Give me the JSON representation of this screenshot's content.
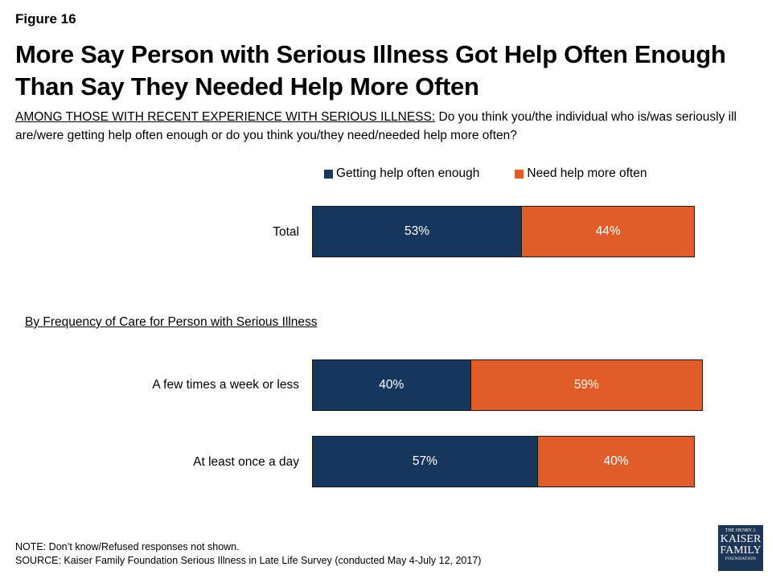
{
  "figure_label": "Figure 16",
  "chart_data": {
    "type": "bar",
    "orientation": "horizontal-stacked",
    "title": "More Say Person with Serious Illness Got Help Often Enough Than Say They Needed Help More Often",
    "subtitle_lead": "AMONG THOSE WITH RECENT EXPERIENCE WITH SERIOUS ILLNESS:",
    "subtitle_rest": " Do you think you/the individual who is/was seriously ill are/were getting help often enough or do you think you/they need/needed help more often?",
    "legend_placement": "top",
    "series": [
      {
        "name": "Getting help often enough",
        "color": "#17365d"
      },
      {
        "name": "Need help more often",
        "color": "#e05c28"
      }
    ],
    "section_label": "By Frequency of Care for Person with Serious Illness",
    "rows": [
      {
        "category": "Total",
        "values": [
          53,
          44
        ],
        "labels": [
          "53%",
          "44%"
        ]
      },
      {
        "category": "A few times a week or less",
        "values": [
          40,
          59
        ],
        "labels": [
          "40%",
          "59%"
        ]
      },
      {
        "category": "At least once a day",
        "values": [
          57,
          40
        ],
        "labels": [
          "57%",
          "40%"
        ]
      }
    ],
    "xlim": [
      0,
      100
    ]
  },
  "note": "NOTE: Don’t know/Refused responses not shown.",
  "source": "SOURCE: Kaiser Family Foundation Serious Illness in Late Life Survey (conducted May 4-July 12, 2017)",
  "logo": {
    "line1": "THE HENRY J.",
    "line2": "KAISER",
    "line3": "FAMILY",
    "line4": "FOUNDATION",
    "color": "#1d3557"
  }
}
